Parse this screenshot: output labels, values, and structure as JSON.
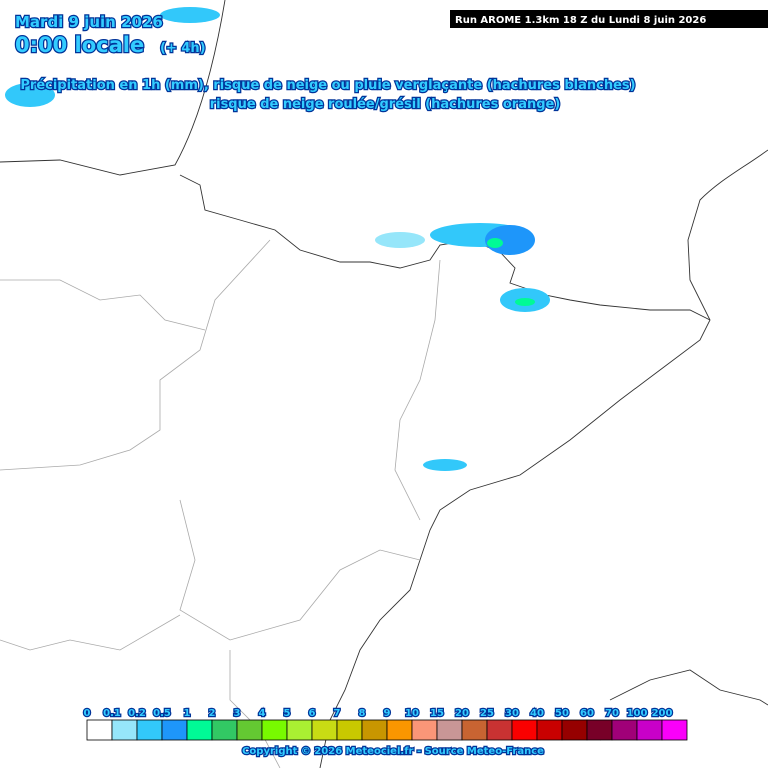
{
  "header": {
    "date": "Mardi 9 juin 2026",
    "time": "0:00 locale",
    "lead": "(+ 4h)",
    "run": "Run AROME 1.3km 18 Z du Lundi 8 juin 2026",
    "line1": "Précipitation en 1h (mm), risque de neige ou pluie verglaçante (hachures blanches)",
    "line2": "risque de neige roulée/grésil (hachures orange)"
  },
  "legend": {
    "labels": [
      "0",
      "0.1",
      "0.2",
      "0.5",
      "1",
      "2",
      "3",
      "4",
      "5",
      "6",
      "7",
      "8",
      "9",
      "10",
      "15",
      "20",
      "25",
      "30",
      "40",
      "50",
      "60",
      "70",
      "100",
      "200"
    ],
    "colors": [
      "#ffffff",
      "#96e6fa",
      "#32c8fa",
      "#1e96fa",
      "#00fa96",
      "#32c864",
      "#64c832",
      "#78fa00",
      "#aaf032",
      "#c8dc14",
      "#c8c800",
      "#c89600",
      "#fa9600",
      "#fa9678",
      "#c89696",
      "#c86432",
      "#c83232",
      "#fa0000",
      "#c80000",
      "#960000",
      "#780028",
      "#a00078",
      "#c800c8",
      "#fa00fa"
    ]
  },
  "footer": {
    "copyright": "Copyright © 2026 Meteociel.fr - Source Meteo-France"
  }
}
